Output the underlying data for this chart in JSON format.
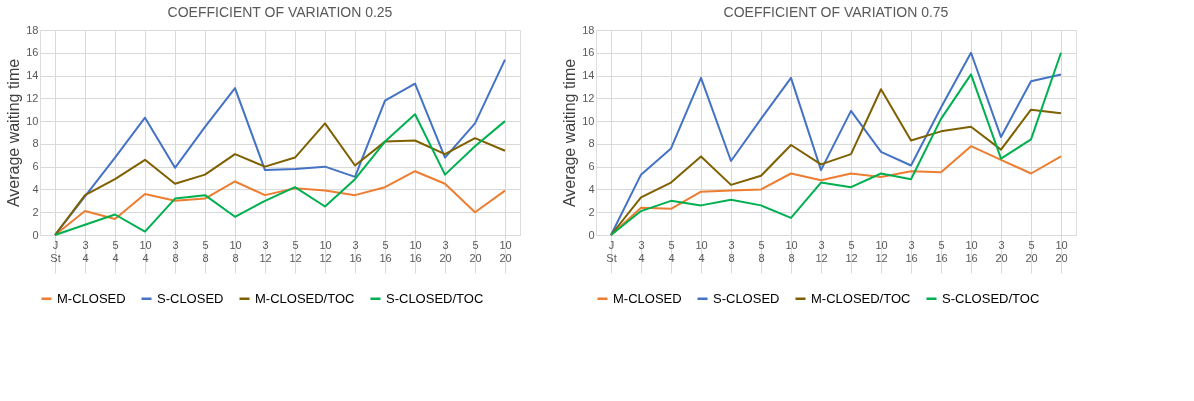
{
  "chart_data": [
    {
      "type": "line",
      "title": "COEFFICIENT OF VARIATION 0.25",
      "ylabel": "Average waiting time",
      "categories": [
        "J\nSt",
        "3\n4",
        "5\n4",
        "10\n4",
        "3\n8",
        "5\n8",
        "10\n8",
        "3\n12",
        "5\n12",
        "10\n12",
        "3\n16",
        "5\n16",
        "10\n16",
        "3\n20",
        "5\n20",
        "10\n20"
      ],
      "series": [
        {
          "name": "M-CLOSED",
          "color": "#ed7d31",
          "values": [
            0,
            2.1,
            1.4,
            3.6,
            3.0,
            3.2,
            4.7,
            3.5,
            4.1,
            3.9,
            3.5,
            4.2,
            5.6,
            4.5,
            2.0,
            3.9
          ]
        },
        {
          "name": "S-CLOSED",
          "color": "#4472c4",
          "values": [
            0,
            3.4,
            6.8,
            10.3,
            5.9,
            9.5,
            12.9,
            5.7,
            5.8,
            6.0,
            5.1,
            11.8,
            13.3,
            6.8,
            9.8,
            15.4
          ]
        },
        {
          "name": "M-CLOSED/TOC",
          "color": "#7f6000",
          "values": [
            0,
            3.5,
            4.9,
            6.6,
            4.5,
            5.3,
            7.1,
            6.0,
            6.8,
            9.8,
            6.1,
            8.2,
            8.3,
            7.1,
            8.5,
            7.4
          ]
        },
        {
          "name": "S-CLOSED/TOC",
          "color": "#00b050",
          "values": [
            0,
            0.9,
            1.8,
            0.3,
            3.2,
            3.5,
            1.6,
            3.0,
            4.2,
            2.5,
            4.9,
            8.2,
            10.6,
            5.3,
            7.8,
            10.0
          ]
        }
      ],
      "ylim": [
        0,
        18
      ],
      "yticks": [
        0,
        2,
        4,
        6,
        8,
        10,
        12,
        14,
        16,
        18
      ],
      "grid": true,
      "legend": "bottom",
      "marker": "none",
      "line_style": "solid"
    },
    {
      "type": "line",
      "title": "COEFFICIENT OF VARIATION 0.75",
      "ylabel": "Average waiting time",
      "categories": [
        "J\nSt",
        "3\n4",
        "5\n4",
        "10\n4",
        "3\n8",
        "5\n8",
        "10\n8",
        "3\n12",
        "5\n12",
        "10\n12",
        "3\n16",
        "5\n16",
        "10\n16",
        "3\n20",
        "5\n20",
        "10\n20"
      ],
      "series": [
        {
          "name": "M-CLOSED",
          "color": "#ed7d31",
          "values": [
            0,
            2.4,
            2.3,
            3.8,
            3.9,
            4.0,
            5.4,
            4.8,
            5.4,
            5.1,
            5.6,
            5.5,
            7.8,
            6.6,
            5.4,
            6.9
          ]
        },
        {
          "name": "S-CLOSED",
          "color": "#4472c4",
          "values": [
            0,
            5.3,
            7.6,
            13.8,
            6.5,
            10.2,
            13.8,
            5.7,
            10.9,
            7.3,
            6.1,
            11.2,
            16.0,
            8.6,
            13.5,
            14.1
          ]
        },
        {
          "name": "M-CLOSED/TOC",
          "color": "#7f6000",
          "values": [
            0,
            3.3,
            4.6,
            6.9,
            4.4,
            5.2,
            7.9,
            6.2,
            7.1,
            12.8,
            8.3,
            9.1,
            9.5,
            7.5,
            11.0,
            10.7
          ]
        },
        {
          "name": "S-CLOSED/TOC",
          "color": "#00b050",
          "values": [
            0,
            2.1,
            3.0,
            2.6,
            3.1,
            2.6,
            1.5,
            4.6,
            4.2,
            5.4,
            4.9,
            10.2,
            14.1,
            6.7,
            8.4,
            16.0
          ]
        }
      ],
      "ylim": [
        0,
        18
      ],
      "yticks": [
        0,
        2,
        4,
        6,
        8,
        10,
        12,
        14,
        16,
        18
      ],
      "grid": true,
      "legend": "bottom",
      "marker": "none",
      "line_style": "solid"
    }
  ]
}
